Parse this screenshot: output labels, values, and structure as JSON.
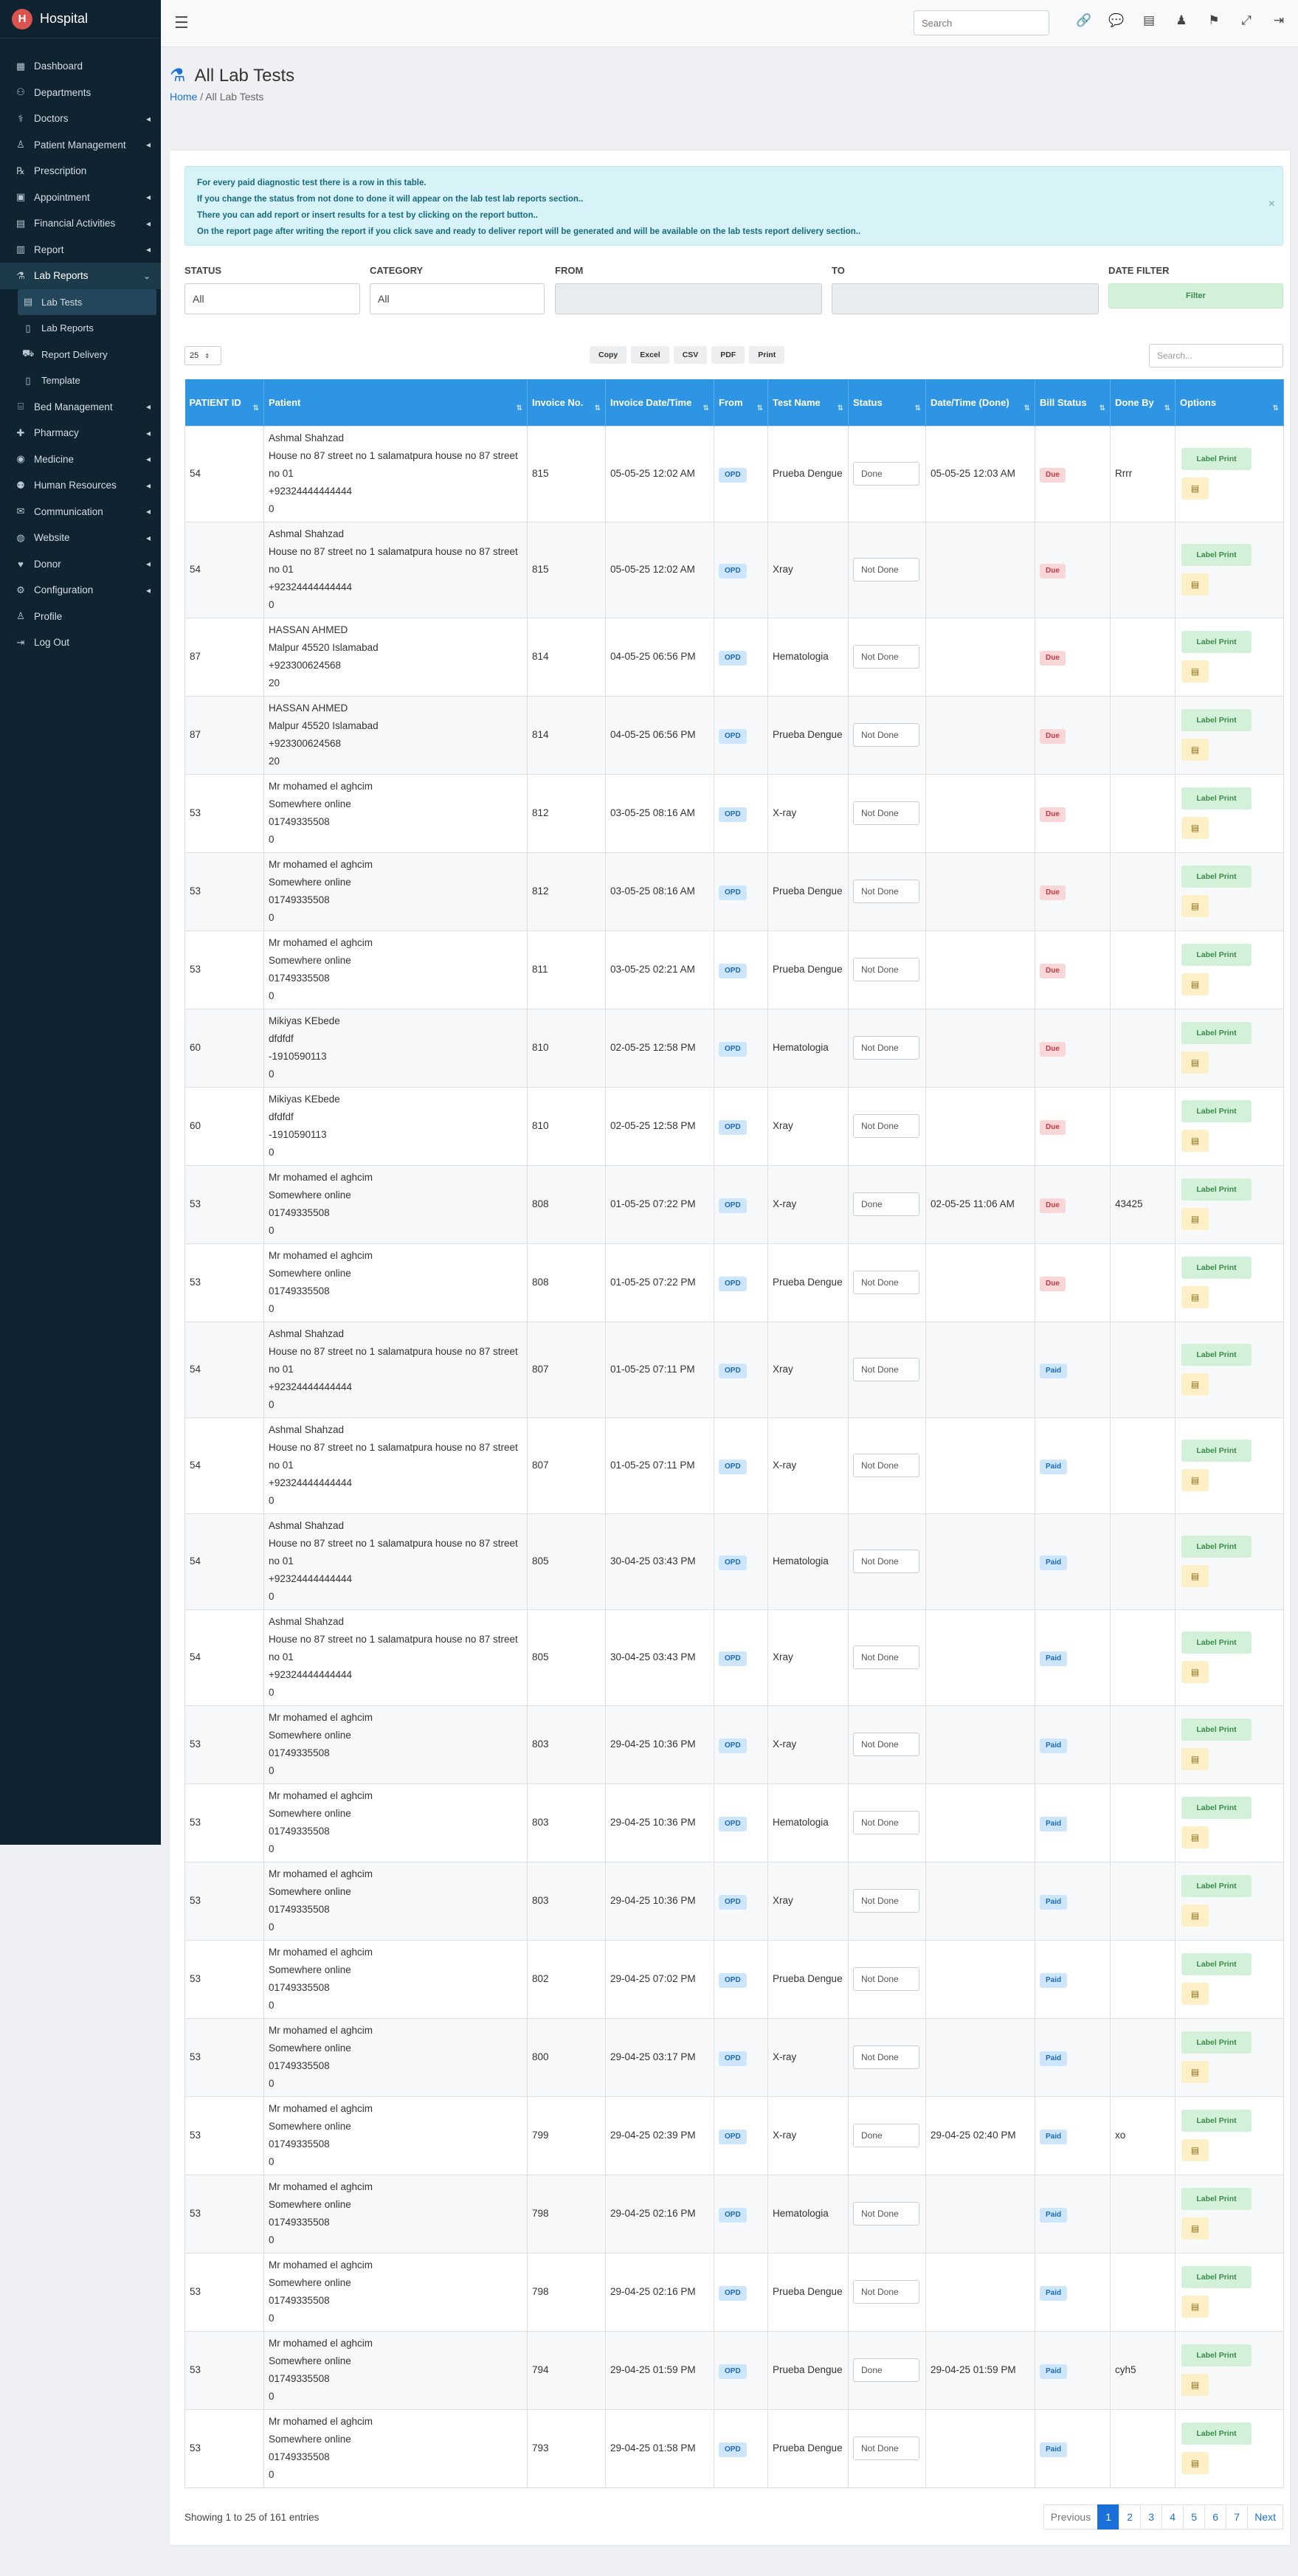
{
  "app": {
    "title": "Hospital",
    "logo_glyph": "H"
  },
  "sidebar": {
    "items": [
      {
        "label": "Dashboard",
        "icon": "dashboard-icon",
        "glyph": "▦",
        "arrow": false
      },
      {
        "label": "Departments",
        "icon": "departments-icon",
        "glyph": "⚇",
        "arrow": false
      },
      {
        "label": "Doctors",
        "icon": "doctor-icon",
        "glyph": "⚕",
        "arrow": true
      },
      {
        "label": "Patient Management",
        "icon": "patient-icon",
        "glyph": "♙",
        "arrow": true
      },
      {
        "label": "Prescription",
        "icon": "prescription-icon",
        "glyph": "℞",
        "arrow": false
      },
      {
        "label": "Appointment",
        "icon": "calendar-icon",
        "glyph": "▣",
        "arrow": true
      },
      {
        "label": "Financial Activities",
        "icon": "finance-icon",
        "glyph": "▤",
        "arrow": true
      },
      {
        "label": "Report",
        "icon": "report-icon",
        "glyph": "▥",
        "arrow": true
      },
      {
        "label": "Lab Reports",
        "icon": "lab-icon",
        "glyph": "⚗",
        "arrow": true,
        "expanded": true
      },
      {
        "label": "Lab Tests",
        "icon": "list-icon",
        "glyph": "▤",
        "sub": true,
        "current": true
      },
      {
        "label": "Lab Reports",
        "icon": "file-icon",
        "glyph": "▯",
        "sub": true
      },
      {
        "label": "Report Delivery",
        "icon": "truck-icon",
        "glyph": "⛟",
        "sub": true
      },
      {
        "label": "Template",
        "icon": "file-icon",
        "glyph": "▯",
        "sub": true
      },
      {
        "label": "Bed Management",
        "icon": "bed-icon",
        "glyph": "⌸",
        "arrow": true
      },
      {
        "label": "Pharmacy",
        "icon": "pharmacy-icon",
        "glyph": "✚",
        "arrow": true
      },
      {
        "label": "Medicine",
        "icon": "medicine-icon",
        "glyph": "◉",
        "arrow": true
      },
      {
        "label": "Human Resources",
        "icon": "users-icon",
        "glyph": "⚉",
        "arrow": true
      },
      {
        "label": "Communication",
        "icon": "chat-icon",
        "glyph": "✉",
        "arrow": true
      },
      {
        "label": "Website",
        "icon": "globe-icon",
        "glyph": "◍",
        "arrow": true
      },
      {
        "label": "Donor",
        "icon": "donor-icon",
        "glyph": "♥",
        "arrow": true
      },
      {
        "label": "Configuration",
        "icon": "gear-icon",
        "glyph": "⚙",
        "arrow": true
      },
      {
        "label": "Profile",
        "icon": "user-icon",
        "glyph": "♙",
        "arrow": false
      },
      {
        "label": "Log Out",
        "icon": "logout-icon",
        "glyph": "⇥",
        "arrow": false
      }
    ]
  },
  "topbar": {
    "search_placeholder": "Search"
  },
  "page": {
    "title": "All Lab Tests",
    "breadcrumb_home": "Home",
    "breadcrumb_sep": "/",
    "breadcrumb_current": "All Lab Tests"
  },
  "alert": {
    "lines": [
      "For every paid diagnostic test there is a row in this table.",
      "If you change the status from not done to done it will appear on the lab test lab reports section..",
      "There you can add report or insert results for a test by clicking on the report button..",
      "On the report page after writing the report if you click save and ready to deliver report will be generated and will be available on the lab tests report delivery section.."
    ],
    "close": "×"
  },
  "filters": {
    "status_label": "STATUS",
    "status_value": "All",
    "category_label": "CATEGORY",
    "category_value": "All",
    "from_label": "FROM",
    "to_label": "TO",
    "date_filter_label": "DATE FILTER",
    "filter_button": "Filter"
  },
  "table_controls": {
    "page_length": "25",
    "export_buttons": [
      "Copy",
      "Excel",
      "CSV",
      "PDF",
      "Print"
    ],
    "search_placeholder": "Search..."
  },
  "table": {
    "headers": [
      "PATIENT ID",
      "Patient",
      "Invoice No.",
      "Invoice Date/Time",
      "From",
      "Test Name",
      "Status",
      "Date/Time (Done)",
      "Bill Status",
      "Done By",
      "Options"
    ],
    "label_print": "Label Print",
    "rows": [
      {
        "id": "54",
        "patient": [
          "Ashmal Shahzad",
          "House no 87 street no 1 salamatpura house no 87 street no 01",
          "+92324444444444",
          "0"
        ],
        "inv": "815",
        "date": "05-05-25 12:02 AM",
        "from": "OPD",
        "test": "Prueba Dengue",
        "status": "Done",
        "done_at": "05-05-25 12:03 AM",
        "bill": "Due",
        "by": "Rrrr"
      },
      {
        "id": "54",
        "patient": [
          "Ashmal Shahzad",
          "House no 87 street no 1 salamatpura house no 87 street no 01",
          "+92324444444444",
          "0"
        ],
        "inv": "815",
        "date": "05-05-25 12:02 AM",
        "from": "OPD",
        "test": "Xray",
        "status": "Not Done",
        "done_at": "",
        "bill": "Due",
        "by": ""
      },
      {
        "id": "87",
        "patient": [
          "HASSAN AHMED",
          "Malpur 45520 Islamabad",
          "+923300624568",
          "20"
        ],
        "inv": "814",
        "date": "04-05-25 06:56 PM",
        "from": "OPD",
        "test": "Hematologia",
        "status": "Not Done",
        "done_at": "",
        "bill": "Due",
        "by": ""
      },
      {
        "id": "87",
        "patient": [
          "HASSAN AHMED",
          "Malpur 45520 Islamabad",
          "+923300624568",
          "20"
        ],
        "inv": "814",
        "date": "04-05-25 06:56 PM",
        "from": "OPD",
        "test": "Prueba Dengue",
        "status": "Not Done",
        "done_at": "",
        "bill": "Due",
        "by": ""
      },
      {
        "id": "53",
        "patient": [
          "Mr mohamed el aghcim",
          "Somewhere online",
          "01749335508",
          "0"
        ],
        "inv": "812",
        "date": "03-05-25 08:16 AM",
        "from": "OPD",
        "test": "X-ray",
        "status": "Not Done",
        "done_at": "",
        "bill": "Due",
        "by": ""
      },
      {
        "id": "53",
        "patient": [
          "Mr mohamed el aghcim",
          "Somewhere online",
          "01749335508",
          "0"
        ],
        "inv": "812",
        "date": "03-05-25 08:16 AM",
        "from": "OPD",
        "test": "Prueba Dengue",
        "status": "Not Done",
        "done_at": "",
        "bill": "Due",
        "by": ""
      },
      {
        "id": "53",
        "patient": [
          "Mr mohamed el aghcim",
          "Somewhere online",
          "01749335508",
          "0"
        ],
        "inv": "811",
        "date": "03-05-25 02:21 AM",
        "from": "OPD",
        "test": "Prueba Dengue",
        "status": "Not Done",
        "done_at": "",
        "bill": "Due",
        "by": ""
      },
      {
        "id": "60",
        "patient": [
          "Mikiyas KEbede",
          "dfdfdf",
          "-1910590113",
          "0"
        ],
        "inv": "810",
        "date": "02-05-25 12:58 PM",
        "from": "OPD",
        "test": "Hematologia",
        "status": "Not Done",
        "done_at": "",
        "bill": "Due",
        "by": ""
      },
      {
        "id": "60",
        "patient": [
          "Mikiyas KEbede",
          "dfdfdf",
          "-1910590113",
          "0"
        ],
        "inv": "810",
        "date": "02-05-25 12:58 PM",
        "from": "OPD",
        "test": "Xray",
        "status": "Not Done",
        "done_at": "",
        "bill": "Due",
        "by": ""
      },
      {
        "id": "53",
        "patient": [
          "Mr mohamed el aghcim",
          "Somewhere online",
          "01749335508",
          "0"
        ],
        "inv": "808",
        "date": "01-05-25 07:22 PM",
        "from": "OPD",
        "test": "X-ray",
        "status": "Done",
        "done_at": "02-05-25 11:06 AM",
        "bill": "Due",
        "by": "43425"
      },
      {
        "id": "53",
        "patient": [
          "Mr mohamed el aghcim",
          "Somewhere online",
          "01749335508",
          "0"
        ],
        "inv": "808",
        "date": "01-05-25 07:22 PM",
        "from": "OPD",
        "test": "Prueba Dengue",
        "status": "Not Done",
        "done_at": "",
        "bill": "Due",
        "by": ""
      },
      {
        "id": "54",
        "patient": [
          "Ashmal Shahzad",
          "House no 87 street no 1 salamatpura house no 87 street no 01",
          "+92324444444444",
          "0"
        ],
        "inv": "807",
        "date": "01-05-25 07:11 PM",
        "from": "OPD",
        "test": "Xray",
        "status": "Not Done",
        "done_at": "",
        "bill": "Paid",
        "by": ""
      },
      {
        "id": "54",
        "patient": [
          "Ashmal Shahzad",
          "House no 87 street no 1 salamatpura house no 87 street no 01",
          "+92324444444444",
          "0"
        ],
        "inv": "807",
        "date": "01-05-25 07:11 PM",
        "from": "OPD",
        "test": "X-ray",
        "status": "Not Done",
        "done_at": "",
        "bill": "Paid",
        "by": ""
      },
      {
        "id": "54",
        "patient": [
          "Ashmal Shahzad",
          "House no 87 street no 1 salamatpura house no 87 street no 01",
          "+92324444444444",
          "0"
        ],
        "inv": "805",
        "date": "30-04-25 03:43 PM",
        "from": "OPD",
        "test": "Hematologia",
        "status": "Not Done",
        "done_at": "",
        "bill": "Paid",
        "by": ""
      },
      {
        "id": "54",
        "patient": [
          "Ashmal Shahzad",
          "House no 87 street no 1 salamatpura house no 87 street no 01",
          "+92324444444444",
          "0"
        ],
        "inv": "805",
        "date": "30-04-25 03:43 PM",
        "from": "OPD",
        "test": "Xray",
        "status": "Not Done",
        "done_at": "",
        "bill": "Paid",
        "by": ""
      },
      {
        "id": "53",
        "patient": [
          "Mr mohamed el aghcim",
          "Somewhere online",
          "01749335508",
          "0"
        ],
        "inv": "803",
        "date": "29-04-25 10:36 PM",
        "from": "OPD",
        "test": "X-ray",
        "status": "Not Done",
        "done_at": "",
        "bill": "Paid",
        "by": ""
      },
      {
        "id": "53",
        "patient": [
          "Mr mohamed el aghcim",
          "Somewhere online",
          "01749335508",
          "0"
        ],
        "inv": "803",
        "date": "29-04-25 10:36 PM",
        "from": "OPD",
        "test": "Hematologia",
        "status": "Not Done",
        "done_at": "",
        "bill": "Paid",
        "by": ""
      },
      {
        "id": "53",
        "patient": [
          "Mr mohamed el aghcim",
          "Somewhere online",
          "01749335508",
          "0"
        ],
        "inv": "803",
        "date": "29-04-25 10:36 PM",
        "from": "OPD",
        "test": "Xray",
        "status": "Not Done",
        "done_at": "",
        "bill": "Paid",
        "by": ""
      },
      {
        "id": "53",
        "patient": [
          "Mr mohamed el aghcim",
          "Somewhere online",
          "01749335508",
          "0"
        ],
        "inv": "802",
        "date": "29-04-25 07:02 PM",
        "from": "OPD",
        "test": "Prueba Dengue",
        "status": "Not Done",
        "done_at": "",
        "bill": "Paid",
        "by": ""
      },
      {
        "id": "53",
        "patient": [
          "Mr mohamed el aghcim",
          "Somewhere online",
          "01749335508",
          "0"
        ],
        "inv": "800",
        "date": "29-04-25 03:17 PM",
        "from": "OPD",
        "test": "X-ray",
        "status": "Not Done",
        "done_at": "",
        "bill": "Paid",
        "by": ""
      },
      {
        "id": "53",
        "patient": [
          "Mr mohamed el aghcim",
          "Somewhere online",
          "01749335508",
          "0"
        ],
        "inv": "799",
        "date": "29-04-25 02:39 PM",
        "from": "OPD",
        "test": "X-ray",
        "status": "Done",
        "done_at": "29-04-25 02:40 PM",
        "bill": "Paid",
        "by": "xo"
      },
      {
        "id": "53",
        "patient": [
          "Mr mohamed el aghcim",
          "Somewhere online",
          "01749335508",
          "0"
        ],
        "inv": "798",
        "date": "29-04-25 02:16 PM",
        "from": "OPD",
        "test": "Hematologia",
        "status": "Not Done",
        "done_at": "",
        "bill": "Paid",
        "by": ""
      },
      {
        "id": "53",
        "patient": [
          "Mr mohamed el aghcim",
          "Somewhere online",
          "01749335508",
          "0"
        ],
        "inv": "798",
        "date": "29-04-25 02:16 PM",
        "from": "OPD",
        "test": "Prueba Dengue",
        "status": "Not Done",
        "done_at": "",
        "bill": "Paid",
        "by": ""
      },
      {
        "id": "53",
        "patient": [
          "Mr mohamed el aghcim",
          "Somewhere online",
          "01749335508",
          "0"
        ],
        "inv": "794",
        "date": "29-04-25 01:59 PM",
        "from": "OPD",
        "test": "Prueba Dengue",
        "status": "Done",
        "done_at": "29-04-25 01:59 PM",
        "bill": "Paid",
        "by": "cyh5"
      },
      {
        "id": "53",
        "patient": [
          "Mr mohamed el aghcim",
          "Somewhere online",
          "01749335508",
          "0"
        ],
        "inv": "793",
        "date": "29-04-25 01:58 PM",
        "from": "OPD",
        "test": "Prueba Dengue",
        "status": "Not Done",
        "done_at": "",
        "bill": "Paid",
        "by": ""
      }
    ]
  },
  "footer": {
    "info": "Showing 1 to 25 of 161 entries",
    "prev": "Previous",
    "next": "Next",
    "pages": [
      "1",
      "2",
      "3",
      "4",
      "5",
      "6",
      "7"
    ],
    "current_page": "1"
  },
  "colors": {
    "sidebar_bg": "#0f2430",
    "table_header": "#2e95e4",
    "primary": "#1a6fd8"
  }
}
